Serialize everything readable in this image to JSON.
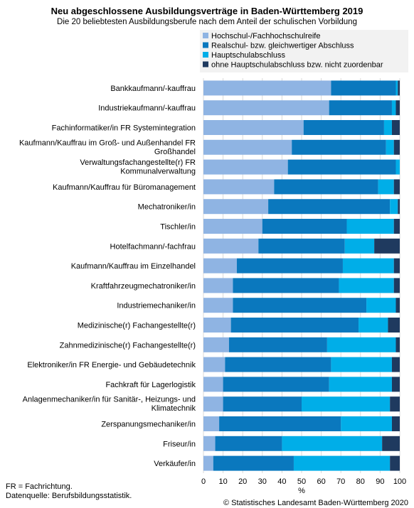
{
  "chart_data": {
    "type": "bar",
    "orientation": "horizontal",
    "stacked": true,
    "title": "Neu abgeschlossene Ausbildungsverträge in Baden-Württemberg 2019",
    "subtitle": "Die 20 beliebtesten Ausbildungsberufe nach dem Anteil der schulischen Vorbildung",
    "xlabel": "%",
    "xlim": [
      0,
      100
    ],
    "xticks": [
      "0",
      "10",
      "20",
      "30",
      "40",
      "50",
      "60",
      "70",
      "80",
      "90",
      "100"
    ],
    "grid": true,
    "legend_position": "top-right",
    "categories": [
      [
        "Bankkaufmann/-kauffrau"
      ],
      [
        "Industriekaufmann/-kauffrau"
      ],
      [
        "Fachinformatiker/in FR Systemintegration"
      ],
      [
        "Kaufmann/Kauffrau im Groß- und Außenhandel FR",
        "Großhandel"
      ],
      [
        "Verwaltungsfachangestellte(r) FR",
        "Kommunalverwaltung"
      ],
      [
        "Kaufmann/Kauffrau für Büromanagement"
      ],
      [
        "Mechatroniker/in"
      ],
      [
        "Tischler/in"
      ],
      [
        "Hotelfachmann/-fachfrau"
      ],
      [
        "Kaufmann/Kauffrau im Einzelhandel"
      ],
      [
        "Kraftfahrzeugmechatroniker/in"
      ],
      [
        "Industriemechaniker/in"
      ],
      [
        "Medizinische(r) Fachangestellte(r)"
      ],
      [
        "Zahnmedizinische(r) Fachangestellte(r)"
      ],
      [
        "Elektroniker/in FR Energie- und Gebäudetechnik"
      ],
      [
        "Fachkraft für Lagerlogistik"
      ],
      [
        "Anlagenmechaniker/in für Sanitär-, Heizungs- und",
        "Klimatechnik"
      ],
      [
        "Zerspanungsmechaniker/in"
      ],
      [
        "Friseur/in"
      ],
      [
        "Verkäufer/in"
      ]
    ],
    "series": [
      {
        "name": "Hochschul-/Fachhochschulreife",
        "color": "#8fb4e3",
        "values": [
          65,
          64,
          51,
          45,
          43,
          36,
          33,
          30,
          28,
          17,
          15,
          15,
          14,
          13,
          11,
          10,
          10,
          8,
          6,
          5
        ]
      },
      {
        "name": "Realschul- bzw. gleichwertiger Abschluss",
        "color": "#0a78be",
        "values": [
          33,
          32,
          41,
          48,
          55,
          53,
          62,
          43,
          44,
          54,
          54,
          68,
          65,
          50,
          54,
          54,
          40,
          62,
          34,
          41
        ]
      },
      {
        "name": "Hauptschulabschluss",
        "color": "#00aee8",
        "values": [
          1,
          2,
          4,
          4,
          2,
          8,
          4,
          24,
          15,
          26,
          28,
          15,
          15,
          35,
          31,
          32,
          45,
          26,
          51,
          49
        ]
      },
      {
        "name": "ohne Hauptschulabschluss bzw. nicht zuordenbar",
        "color": "#1f3a5f",
        "values": [
          1,
          2,
          4,
          3,
          0,
          3,
          1,
          3,
          13,
          3,
          3,
          2,
          6,
          2,
          4,
          4,
          5,
          4,
          9,
          5
        ]
      }
    ]
  },
  "footnotes": {
    "line1": "FR = Fachrichtung.",
    "line2": "Datenquelle: Berufsbildungsstatistik.",
    "copyright": "© Statistisches Landesamt Baden-Württemberg 2020"
  },
  "colors": {
    "gridline": "#d9d9d9",
    "plot_background": "#ffffff",
    "legend_background": "#f2f2f2"
  }
}
